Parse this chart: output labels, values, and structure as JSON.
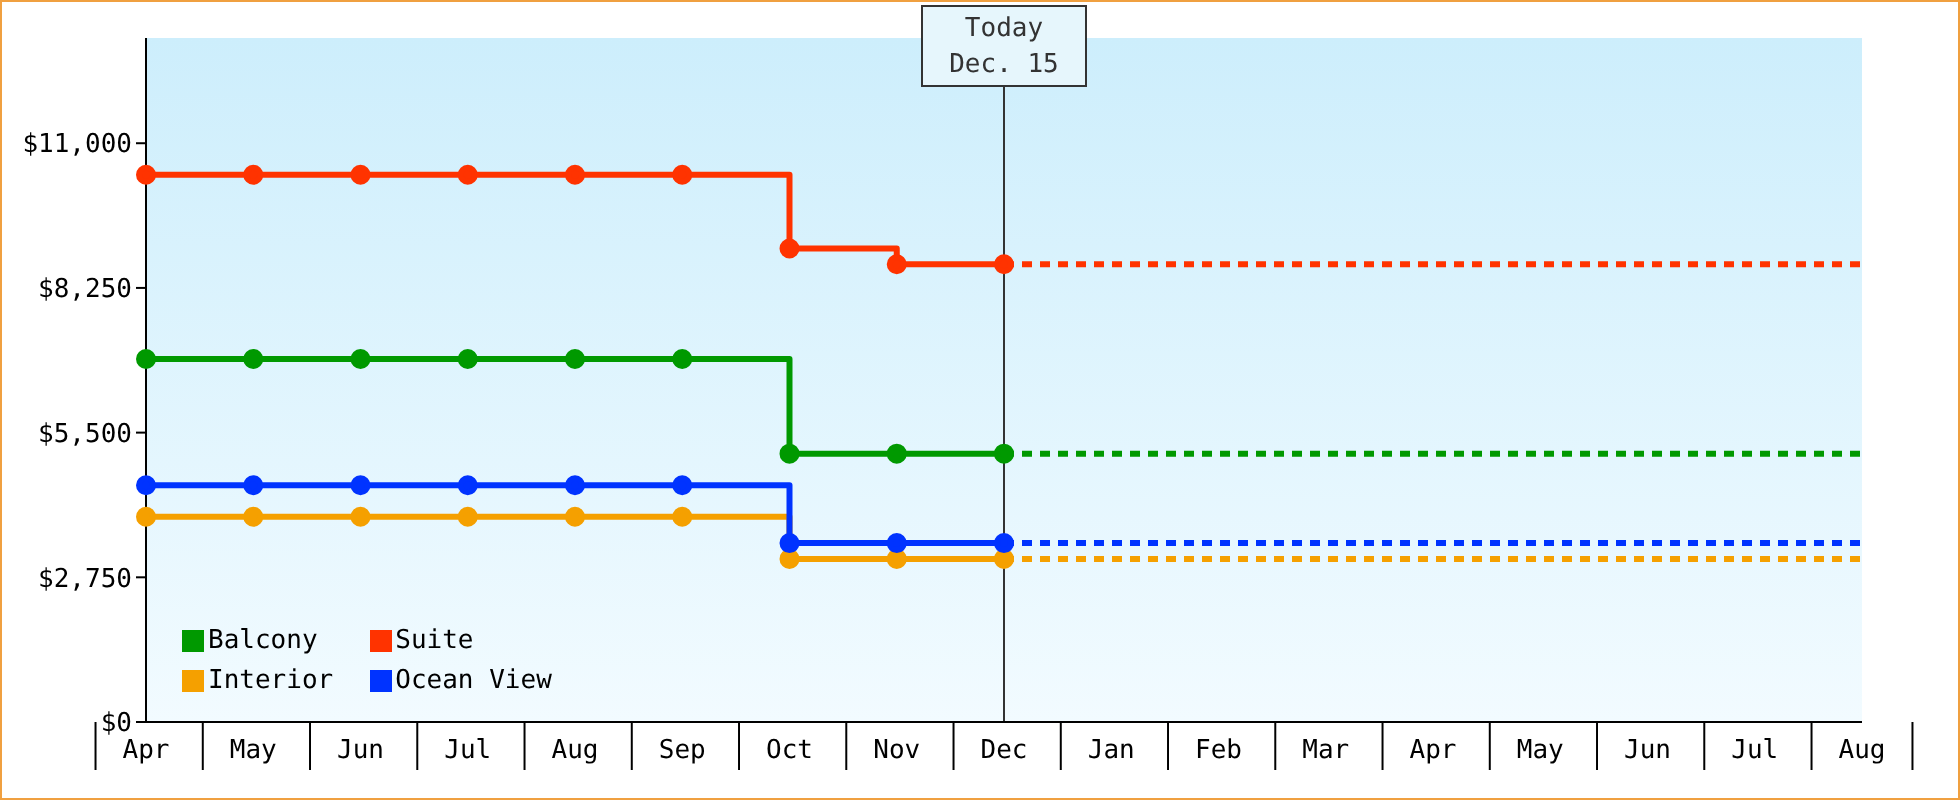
{
  "chart_data": {
    "type": "step",
    "categories": [
      "Apr",
      "May",
      "Jun",
      "Jul",
      "Aug",
      "Sep",
      "Oct",
      "Nov",
      "Dec",
      "Jan",
      "Feb",
      "Mar",
      "Apr",
      "May",
      "Jun",
      "Jul",
      "Aug"
    ],
    "ylim": [
      0,
      13000
    ],
    "yticks": [
      {
        "value": 0,
        "label": "$0"
      },
      {
        "value": 2750,
        "label": "$2,750"
      },
      {
        "value": 5500,
        "label": "$5,500"
      },
      {
        "value": 8250,
        "label": "$8,250"
      },
      {
        "value": 11000,
        "label": "$11,000"
      }
    ],
    "grid": false,
    "legend": "bottom left",
    "marker": "circle",
    "ref_lines": [
      {
        "axis": "x",
        "value": "Dec",
        "label": "Today\nDec. 15",
        "color": "#333333"
      }
    ],
    "series": [
      {
        "name": "Balcony",
        "color": "#009900",
        "values": [
          6900,
          6900,
          6900,
          6900,
          6900,
          6900,
          5100,
          5100,
          5100,
          null,
          null,
          null,
          null,
          null,
          null,
          null,
          null
        ]
      },
      {
        "name": "Suite",
        "color": "#ff3300",
        "values": [
          10400,
          10400,
          10400,
          10400,
          10400,
          10400,
          9000,
          8700,
          8700,
          null,
          null,
          null,
          null,
          null,
          null,
          null,
          null
        ]
      },
      {
        "name": "Interior",
        "color": "#f5a000",
        "values": [
          3900,
          3900,
          3900,
          3900,
          3900,
          3900,
          3100,
          3100,
          3100,
          null,
          null,
          null,
          null,
          null,
          null,
          null,
          null
        ]
      },
      {
        "name": "Ocean View",
        "color": "#0033ff",
        "values": [
          4500,
          4500,
          4500,
          4500,
          4500,
          4500,
          3400,
          3400,
          3400,
          null,
          null,
          null,
          null,
          null,
          null,
          null,
          null
        ]
      },
      {
        "color": "#009900",
        "values": [
          null,
          null,
          null,
          null,
          null,
          null,
          null,
          null,
          5100,
          5100,
          5100,
          5100,
          5100,
          5100,
          5100,
          5100,
          5100
        ],
        "marker": "none",
        "line_style": "dashed"
      },
      {
        "color": "#ff3300",
        "values": [
          null,
          null,
          null,
          null,
          null,
          null,
          null,
          null,
          8700,
          8700,
          8700,
          8700,
          8700,
          8700,
          8700,
          8700,
          8700
        ],
        "marker": "none",
        "line_style": "dashed"
      },
      {
        "color": "#f5a000",
        "values": [
          null,
          null,
          null,
          null,
          null,
          null,
          null,
          null,
          3100,
          3100,
          3100,
          3100,
          3100,
          3100,
          3100,
          3100,
          3100
        ],
        "marker": "none",
        "line_style": "dashed"
      },
      {
        "color": "#0033ff",
        "values": [
          null,
          null,
          null,
          null,
          null,
          null,
          null,
          null,
          3400,
          3400,
          3400,
          3400,
          3400,
          3400,
          3400,
          3400,
          3400
        ],
        "marker": "none",
        "line_style": "dashed"
      }
    ]
  }
}
